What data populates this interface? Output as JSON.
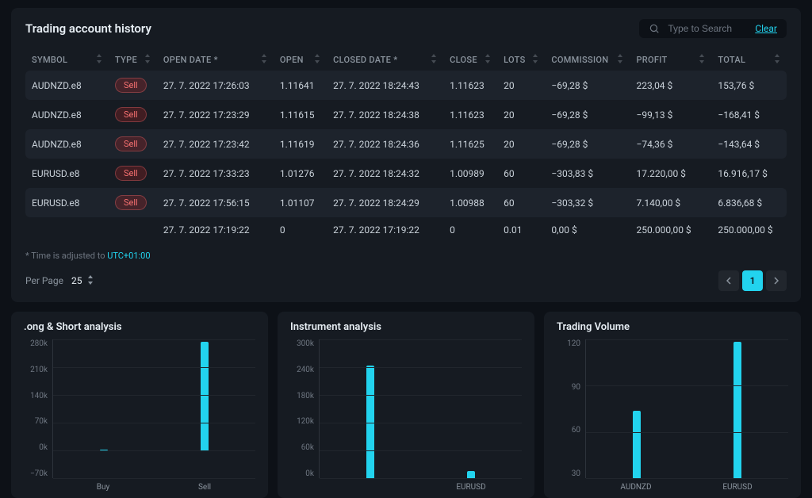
{
  "history": {
    "title": "Trading account history",
    "search": {
      "placeholder": "Type to Search",
      "clear": "Clear"
    },
    "columns": [
      {
        "key": "symbol",
        "label": "SYMBOL"
      },
      {
        "key": "type",
        "label": "TYPE"
      },
      {
        "key": "openDate",
        "label": "OPEN DATE *"
      },
      {
        "key": "open",
        "label": "OPEN"
      },
      {
        "key": "closedDate",
        "label": "CLOSED DATE *"
      },
      {
        "key": "close",
        "label": "CLOSE"
      },
      {
        "key": "lots",
        "label": "LOTS"
      },
      {
        "key": "commission",
        "label": "COMMISSION"
      },
      {
        "key": "profit",
        "label": "PROFIT"
      },
      {
        "key": "total",
        "label": "TOTAL"
      }
    ],
    "rows": [
      {
        "symbol": "AUDNZD.e8",
        "type": "Sell",
        "openDate": "27. 7. 2022 17:26:03",
        "open": "1.11641",
        "closedDate": "27. 7. 2022 18:24:43",
        "close": "1.11623",
        "lots": "20",
        "commission": "−69,28 $",
        "profit": "223,04 $",
        "total": "153,76 $"
      },
      {
        "symbol": "AUDNZD.e8",
        "type": "Sell",
        "openDate": "27. 7. 2022 17:23:29",
        "open": "1.11615",
        "closedDate": "27. 7. 2022 18:24:38",
        "close": "1.11623",
        "lots": "20",
        "commission": "−69,28 $",
        "profit": "−99,13 $",
        "total": "−168,41 $"
      },
      {
        "symbol": "AUDNZD.e8",
        "type": "Sell",
        "openDate": "27. 7. 2022 17:23:42",
        "open": "1.11619",
        "closedDate": "27. 7. 2022 18:24:36",
        "close": "1.11625",
        "lots": "20",
        "commission": "−69,28 $",
        "profit": "−74,36 $",
        "total": "−143,64 $"
      },
      {
        "symbol": "EURUSD.e8",
        "type": "Sell",
        "openDate": "27. 7. 2022 17:33:23",
        "open": "1.01276",
        "closedDate": "27. 7. 2022 18:24:32",
        "close": "1.00989",
        "lots": "60",
        "commission": "−303,83 $",
        "profit": "17.220,00 $",
        "total": "16.916,17 $"
      },
      {
        "symbol": "EURUSD.e8",
        "type": "Sell",
        "openDate": "27. 7. 2022 17:56:15",
        "open": "1.01107",
        "closedDate": "27. 7. 2022 18:24:29",
        "close": "1.00988",
        "lots": "60",
        "commission": "−303,32 $",
        "profit": "7.140,00 $",
        "total": "6.836,68 $"
      },
      {
        "symbol": "",
        "type": "",
        "openDate": "27. 7. 2022 17:19:22",
        "open": "0",
        "closedDate": "27. 7. 2022 17:19:22",
        "close": "0",
        "lots": "0.01",
        "commission": "0,00 $",
        "profit": "250.000,00 $",
        "total": "250.000,00 $"
      }
    ],
    "footnote": {
      "prefix": "* Time is adjusted to ",
      "tz": "UTC+01:00"
    },
    "perPage": {
      "label": "Per Page",
      "value": "25"
    },
    "pagination": {
      "current": "1"
    }
  },
  "charts": {
    "longShort": {
      "title": ".ong & Short analysis",
      "type": "bar",
      "categories": [
        "Buy",
        "Sell"
      ],
      "values": [
        0,
        275000
      ],
      "yticks": [
        "280k",
        "210k",
        "140k",
        "70k",
        "0k",
        "−70k"
      ],
      "ylim": [
        -70000,
        280000
      ],
      "bar_color": "#22d3ee",
      "grid_color": "#21262d"
    },
    "instrument": {
      "title": "Instrument analysis",
      "type": "bar",
      "categories": [
        "",
        "EURUSD"
      ],
      "values": [
        243000,
        16000
      ],
      "yticks": [
        "300k",
        "240k",
        "180k",
        "120k",
        "60k",
        "0k"
      ],
      "ylim": [
        0,
        300000
      ],
      "bar_color": "#22d3ee",
      "grid_color": "#21262d"
    },
    "tradingVolume": {
      "title": "Trading Volume",
      "type": "bar",
      "categories": [
        "AUDNZD",
        "EURUSD"
      ],
      "values": [
        58,
        118
      ],
      "yticks": [
        "120",
        "90",
        "60",
        "30"
      ],
      "ylim": [
        0,
        120
      ],
      "bar_color": "#22d3ee",
      "grid_color": "#21262d"
    }
  },
  "colors": {
    "background": "#0d1117",
    "panel": "#161b22",
    "accent": "#22d3ee",
    "sell_text": "#f87171",
    "text_primary": "#e6edf3",
    "text_secondary": "#8b949e"
  }
}
